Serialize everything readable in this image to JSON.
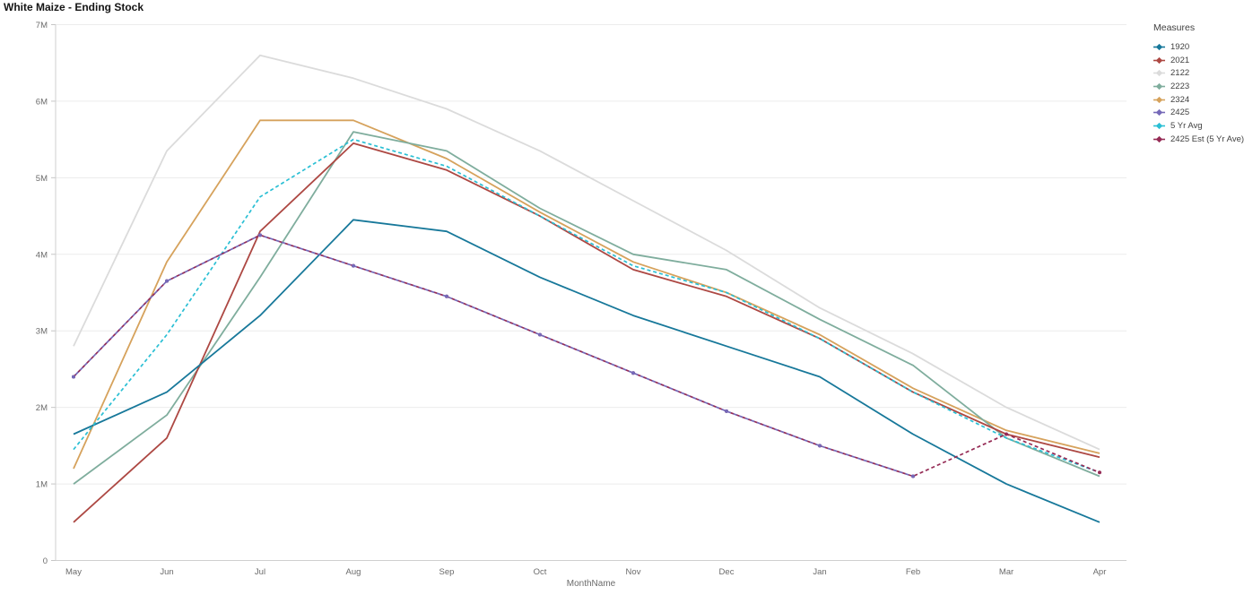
{
  "title": "White Maize - Ending Stock",
  "legend": {
    "title": "Measures"
  },
  "chart_data": {
    "type": "line",
    "title": "White Maize - Ending Stock",
    "xlabel": "MonthName",
    "ylabel": "",
    "unit": "millions",
    "ylim": [
      0,
      7
    ],
    "y_tick_labels": [
      "0",
      "1M",
      "2M",
      "3M",
      "4M",
      "5M",
      "6M",
      "7M"
    ],
    "categories": [
      "May",
      "Jun",
      "Jul",
      "Aug",
      "Sep",
      "Oct",
      "Nov",
      "Dec",
      "Jan",
      "Feb",
      "Mar",
      "Apr"
    ],
    "grid": true,
    "legend_position": "right",
    "series": [
      {
        "name": "1920",
        "color": "#17789a",
        "style": "solid",
        "z": 5,
        "values": [
          1.65,
          2.2,
          3.2,
          4.45,
          4.3,
          3.7,
          3.2,
          2.8,
          2.4,
          1.65,
          1.0,
          0.5
        ]
      },
      {
        "name": "2021",
        "color": "#ad4843",
        "style": "solid",
        "z": 4,
        "values": [
          0.5,
          1.6,
          4.3,
          5.45,
          5.1,
          4.5,
          3.8,
          3.45,
          2.9,
          2.2,
          1.65,
          1.35
        ]
      },
      {
        "name": "2122",
        "color": "#dbdbdb",
        "style": "solid",
        "z": 1,
        "values": [
          2.8,
          5.35,
          6.6,
          6.3,
          5.9,
          5.35,
          4.7,
          4.05,
          3.3,
          2.7,
          2.0,
          1.45
        ]
      },
      {
        "name": "2223",
        "color": "#7fad9d",
        "style": "solid",
        "z": 3,
        "values": [
          1.0,
          1.9,
          3.7,
          5.6,
          5.35,
          4.6,
          4.0,
          3.8,
          3.15,
          2.55,
          1.6,
          1.1
        ]
      },
      {
        "name": "2324",
        "color": "#d6a25c",
        "style": "solid",
        "z": 2,
        "values": [
          1.2,
          3.9,
          5.75,
          5.75,
          5.25,
          4.55,
          3.9,
          3.5,
          2.95,
          2.25,
          1.7,
          1.4
        ]
      },
      {
        "name": "2425",
        "color": "#7569b8",
        "style": "dashed",
        "markers": true,
        "dash_offset": 3.5,
        "z": 8,
        "values": [
          2.4,
          3.65,
          4.25,
          3.85,
          3.45,
          2.95,
          2.45,
          1.95,
          1.5,
          1.1,
          null,
          null
        ]
      },
      {
        "name": "5 Yr Avg",
        "color": "#2abfd4",
        "style": "dashed",
        "z": 6,
        "values": [
          1.45,
          2.95,
          4.75,
          5.5,
          5.15,
          4.5,
          3.85,
          3.5,
          2.9,
          2.2,
          1.6,
          1.15
        ]
      },
      {
        "name": "2425 Est (5 Yr Ave)",
        "color": "#952b55",
        "style": "dashed",
        "markers": true,
        "z": 7,
        "values": [
          2.4,
          3.65,
          4.25,
          3.85,
          3.45,
          2.95,
          2.45,
          1.95,
          1.5,
          1.1,
          1.65,
          1.15
        ]
      }
    ]
  }
}
